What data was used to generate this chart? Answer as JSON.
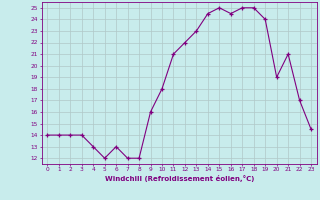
{
  "x": [
    0,
    1,
    2,
    3,
    4,
    5,
    6,
    7,
    8,
    9,
    10,
    11,
    12,
    13,
    14,
    15,
    16,
    17,
    18,
    19,
    20,
    21,
    22,
    23
  ],
  "y": [
    14,
    14,
    14,
    14,
    13,
    12,
    13,
    12,
    12,
    16,
    18,
    21,
    22,
    23,
    24.5,
    25,
    24.5,
    25,
    25,
    24,
    19,
    21,
    17,
    14.5
  ],
  "line_color": "#800080",
  "marker": "+",
  "marker_color": "#800080",
  "bg_color": "#c8ecec",
  "grid_color": "#b0c8c8",
  "xlabel": "Windchill (Refroidissement éolien,°C)",
  "xlabel_color": "#800080",
  "tick_color": "#800080",
  "ylim": [
    11.5,
    25.5
  ],
  "yticks": [
    12,
    13,
    14,
    15,
    16,
    17,
    18,
    19,
    20,
    21,
    22,
    23,
    24,
    25
  ],
  "xlim": [
    -0.5,
    23.5
  ],
  "xticks": [
    0,
    1,
    2,
    3,
    4,
    5,
    6,
    7,
    8,
    9,
    10,
    11,
    12,
    13,
    14,
    15,
    16,
    17,
    18,
    19,
    20,
    21,
    22,
    23
  ],
  "spine_color": "#800080"
}
